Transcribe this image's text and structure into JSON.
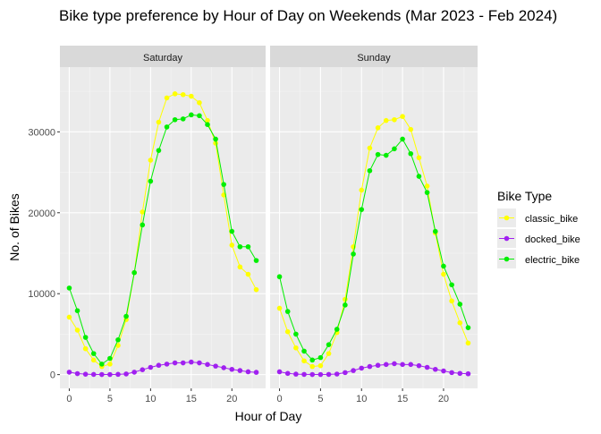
{
  "chart_data": {
    "type": "line",
    "title": "Bike type preference by Hour of Day on Weekends (Mar 2023 - Feb 2024)",
    "xlabel": "Hour of Day",
    "ylabel": "No. of Bikes",
    "xlim": [
      -1.15,
      24.15
    ],
    "ylim": [
      -1700,
      38000
    ],
    "x_ticks": [
      0,
      5,
      10,
      15,
      20
    ],
    "y_ticks": [
      0,
      10000,
      20000,
      30000
    ],
    "y_tick_labels": [
      "0",
      "10000",
      "20000",
      "30000"
    ],
    "grid": true,
    "legend": {
      "title": "Bike Type",
      "position": "right"
    },
    "facets": [
      "Saturday",
      "Sunday"
    ],
    "hours": [
      0,
      1,
      2,
      3,
      4,
      5,
      6,
      7,
      8,
      9,
      10,
      11,
      12,
      13,
      14,
      15,
      16,
      17,
      18,
      19,
      20,
      21,
      22,
      23
    ],
    "series": [
      {
        "name": "classic_bike",
        "color": "#ffff00",
        "values": {
          "Saturday": [
            7100,
            5500,
            3200,
            1800,
            1000,
            1300,
            3600,
            6800,
            12600,
            20100,
            26500,
            31200,
            34200,
            34700,
            34600,
            34400,
            33600,
            31400,
            28600,
            22200,
            16000,
            13300,
            12400,
            10500
          ],
          "Sunday": [
            8200,
            5300,
            3300,
            1700,
            1000,
            1100,
            2600,
            5200,
            9300,
            15800,
            22800,
            28000,
            30500,
            31400,
            31500,
            31900,
            30300,
            26800,
            23300,
            17500,
            12400,
            9100,
            6400,
            3900
          ]
        }
      },
      {
        "name": "docked_bike",
        "color": "#a020f0",
        "values": {
          "Saturday": [
            300,
            120,
            50,
            20,
            10,
            10,
            30,
            80,
            300,
            600,
            900,
            1150,
            1300,
            1450,
            1450,
            1550,
            1450,
            1250,
            1050,
            850,
            650,
            500,
            350,
            280
          ],
          "Sunday": [
            350,
            150,
            60,
            25,
            10,
            10,
            25,
            70,
            250,
            500,
            800,
            1000,
            1150,
            1250,
            1350,
            1250,
            1250,
            1100,
            900,
            650,
            450,
            250,
            150,
            100
          ]
        }
      },
      {
        "name": "electric_bike",
        "color": "#00ee00",
        "values": {
          "Saturday": [
            10700,
            7900,
            4600,
            2600,
            1300,
            2000,
            4300,
            7200,
            12600,
            18500,
            23900,
            27700,
            30600,
            31500,
            31600,
            32100,
            32000,
            30900,
            29100,
            23500,
            17700,
            15800,
            15800,
            14100
          ],
          "Sunday": [
            12100,
            7800,
            5000,
            2900,
            1800,
            2100,
            3700,
            5600,
            8600,
            14900,
            20400,
            25200,
            27200,
            27100,
            27900,
            29100,
            27300,
            24500,
            22500,
            17700,
            13400,
            11100,
            8700,
            5800
          ]
        }
      }
    ]
  }
}
